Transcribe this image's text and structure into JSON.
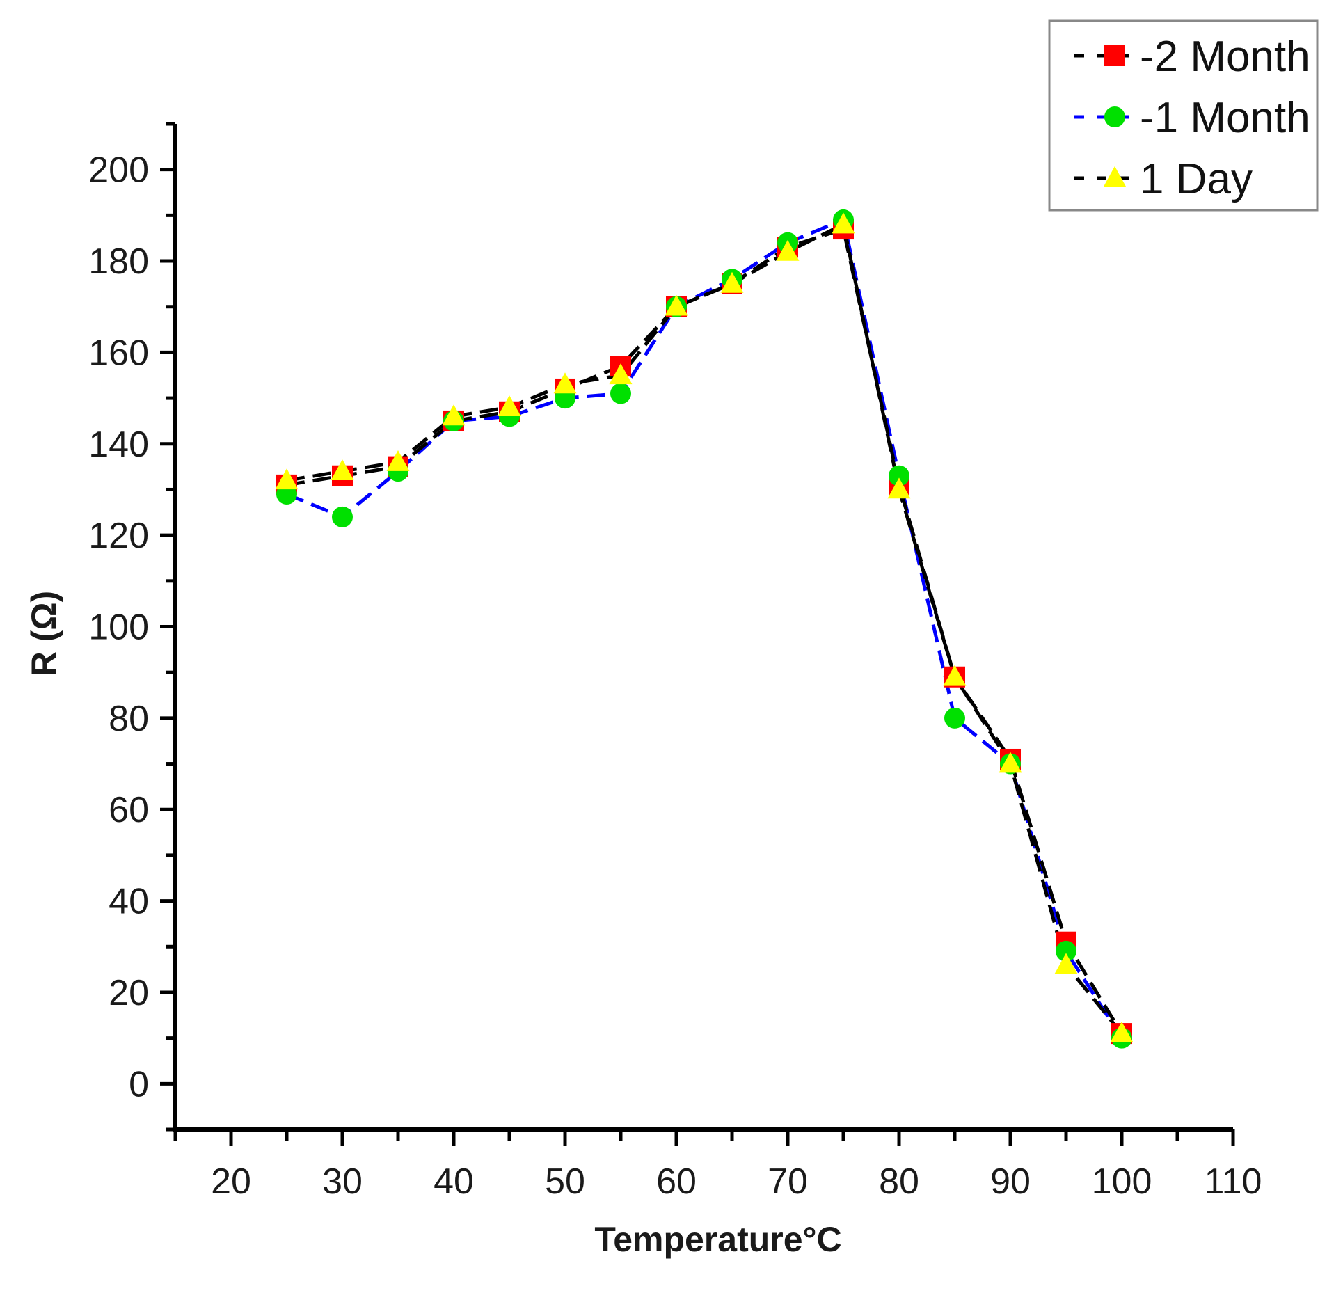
{
  "chart_data": {
    "type": "line",
    "title": "",
    "xlabel": "Temperature°C",
    "ylabel": "R (Ω)",
    "xlim": [
      15,
      110
    ],
    "ylim": [
      -10,
      210
    ],
    "xticks": [
      20,
      30,
      40,
      50,
      60,
      70,
      80,
      90,
      100,
      110
    ],
    "yticks": [
      0,
      20,
      40,
      60,
      80,
      100,
      120,
      140,
      160,
      180,
      200
    ],
    "x_minor_step": 5,
    "y_minor_step": 10,
    "legend_position": "top-right",
    "x": [
      25,
      30,
      35,
      40,
      45,
      50,
      55,
      60,
      65,
      70,
      75,
      80,
      85,
      90,
      95,
      100
    ],
    "series": [
      {
        "name": "2 Month",
        "legend_label": "-2 Month",
        "marker": "square",
        "marker_color": "#ff0000",
        "line_color": "#000000",
        "values": [
          131,
          133,
          135,
          145,
          147,
          152,
          157,
          170,
          175,
          183,
          187,
          131,
          89,
          71,
          31,
          11
        ]
      },
      {
        "name": "1 Month",
        "legend_label": "-1 Month",
        "marker": "circle",
        "marker_color": "#00e000",
        "line_color": "#0000ff",
        "values": [
          129,
          124,
          134,
          145,
          146,
          150,
          151,
          170,
          176,
          184,
          189,
          133,
          80,
          70,
          29,
          10
        ]
      },
      {
        "name": "1 Day",
        "legend_label": "1 Day",
        "marker": "triangle",
        "marker_color": "#ffff00",
        "line_color": "#000000",
        "values": [
          132,
          134,
          136,
          146,
          148,
          153,
          155,
          170,
          175,
          182,
          188,
          130,
          89,
          70,
          26,
          11
        ]
      }
    ]
  }
}
